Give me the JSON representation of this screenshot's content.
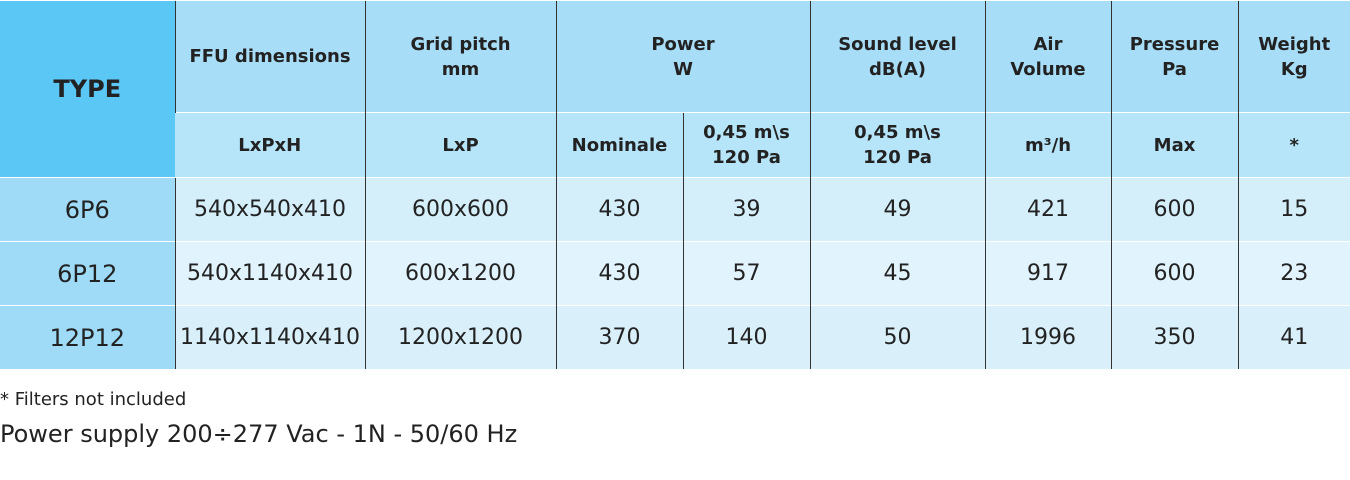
{
  "table": {
    "header_top": [
      "TYPE",
      "FFU dimensions",
      "Grid pitch\nmm",
      "Power\nW",
      "Sound level\ndB(A)",
      "Air\nVolume",
      "Pressure\nPa",
      "Weight\nKg"
    ],
    "header_sub": [
      "LxPxH",
      "LxP",
      "Nominale",
      "0,45 m\\s\n120 Pa",
      "0,45 m\\s\n120 Pa",
      "m³/h",
      "Max",
      "*"
    ],
    "rows": [
      [
        "6P6",
        "540x540x410",
        "600x600",
        "430",
        "39",
        "49",
        "421",
        "600",
        "15"
      ],
      [
        "6P12",
        "540x1140x410",
        "600x1200",
        "430",
        "57",
        "45",
        "917",
        "600",
        "23"
      ],
      [
        "12P12",
        "1140x1140x410",
        "1200x1200",
        "370",
        "140",
        "50",
        "1996",
        "350",
        "41"
      ]
    ]
  },
  "notes": [
    "* Filters not included",
    "Power supply 200÷277 Vac - 1N - 50/60 Hz"
  ]
}
